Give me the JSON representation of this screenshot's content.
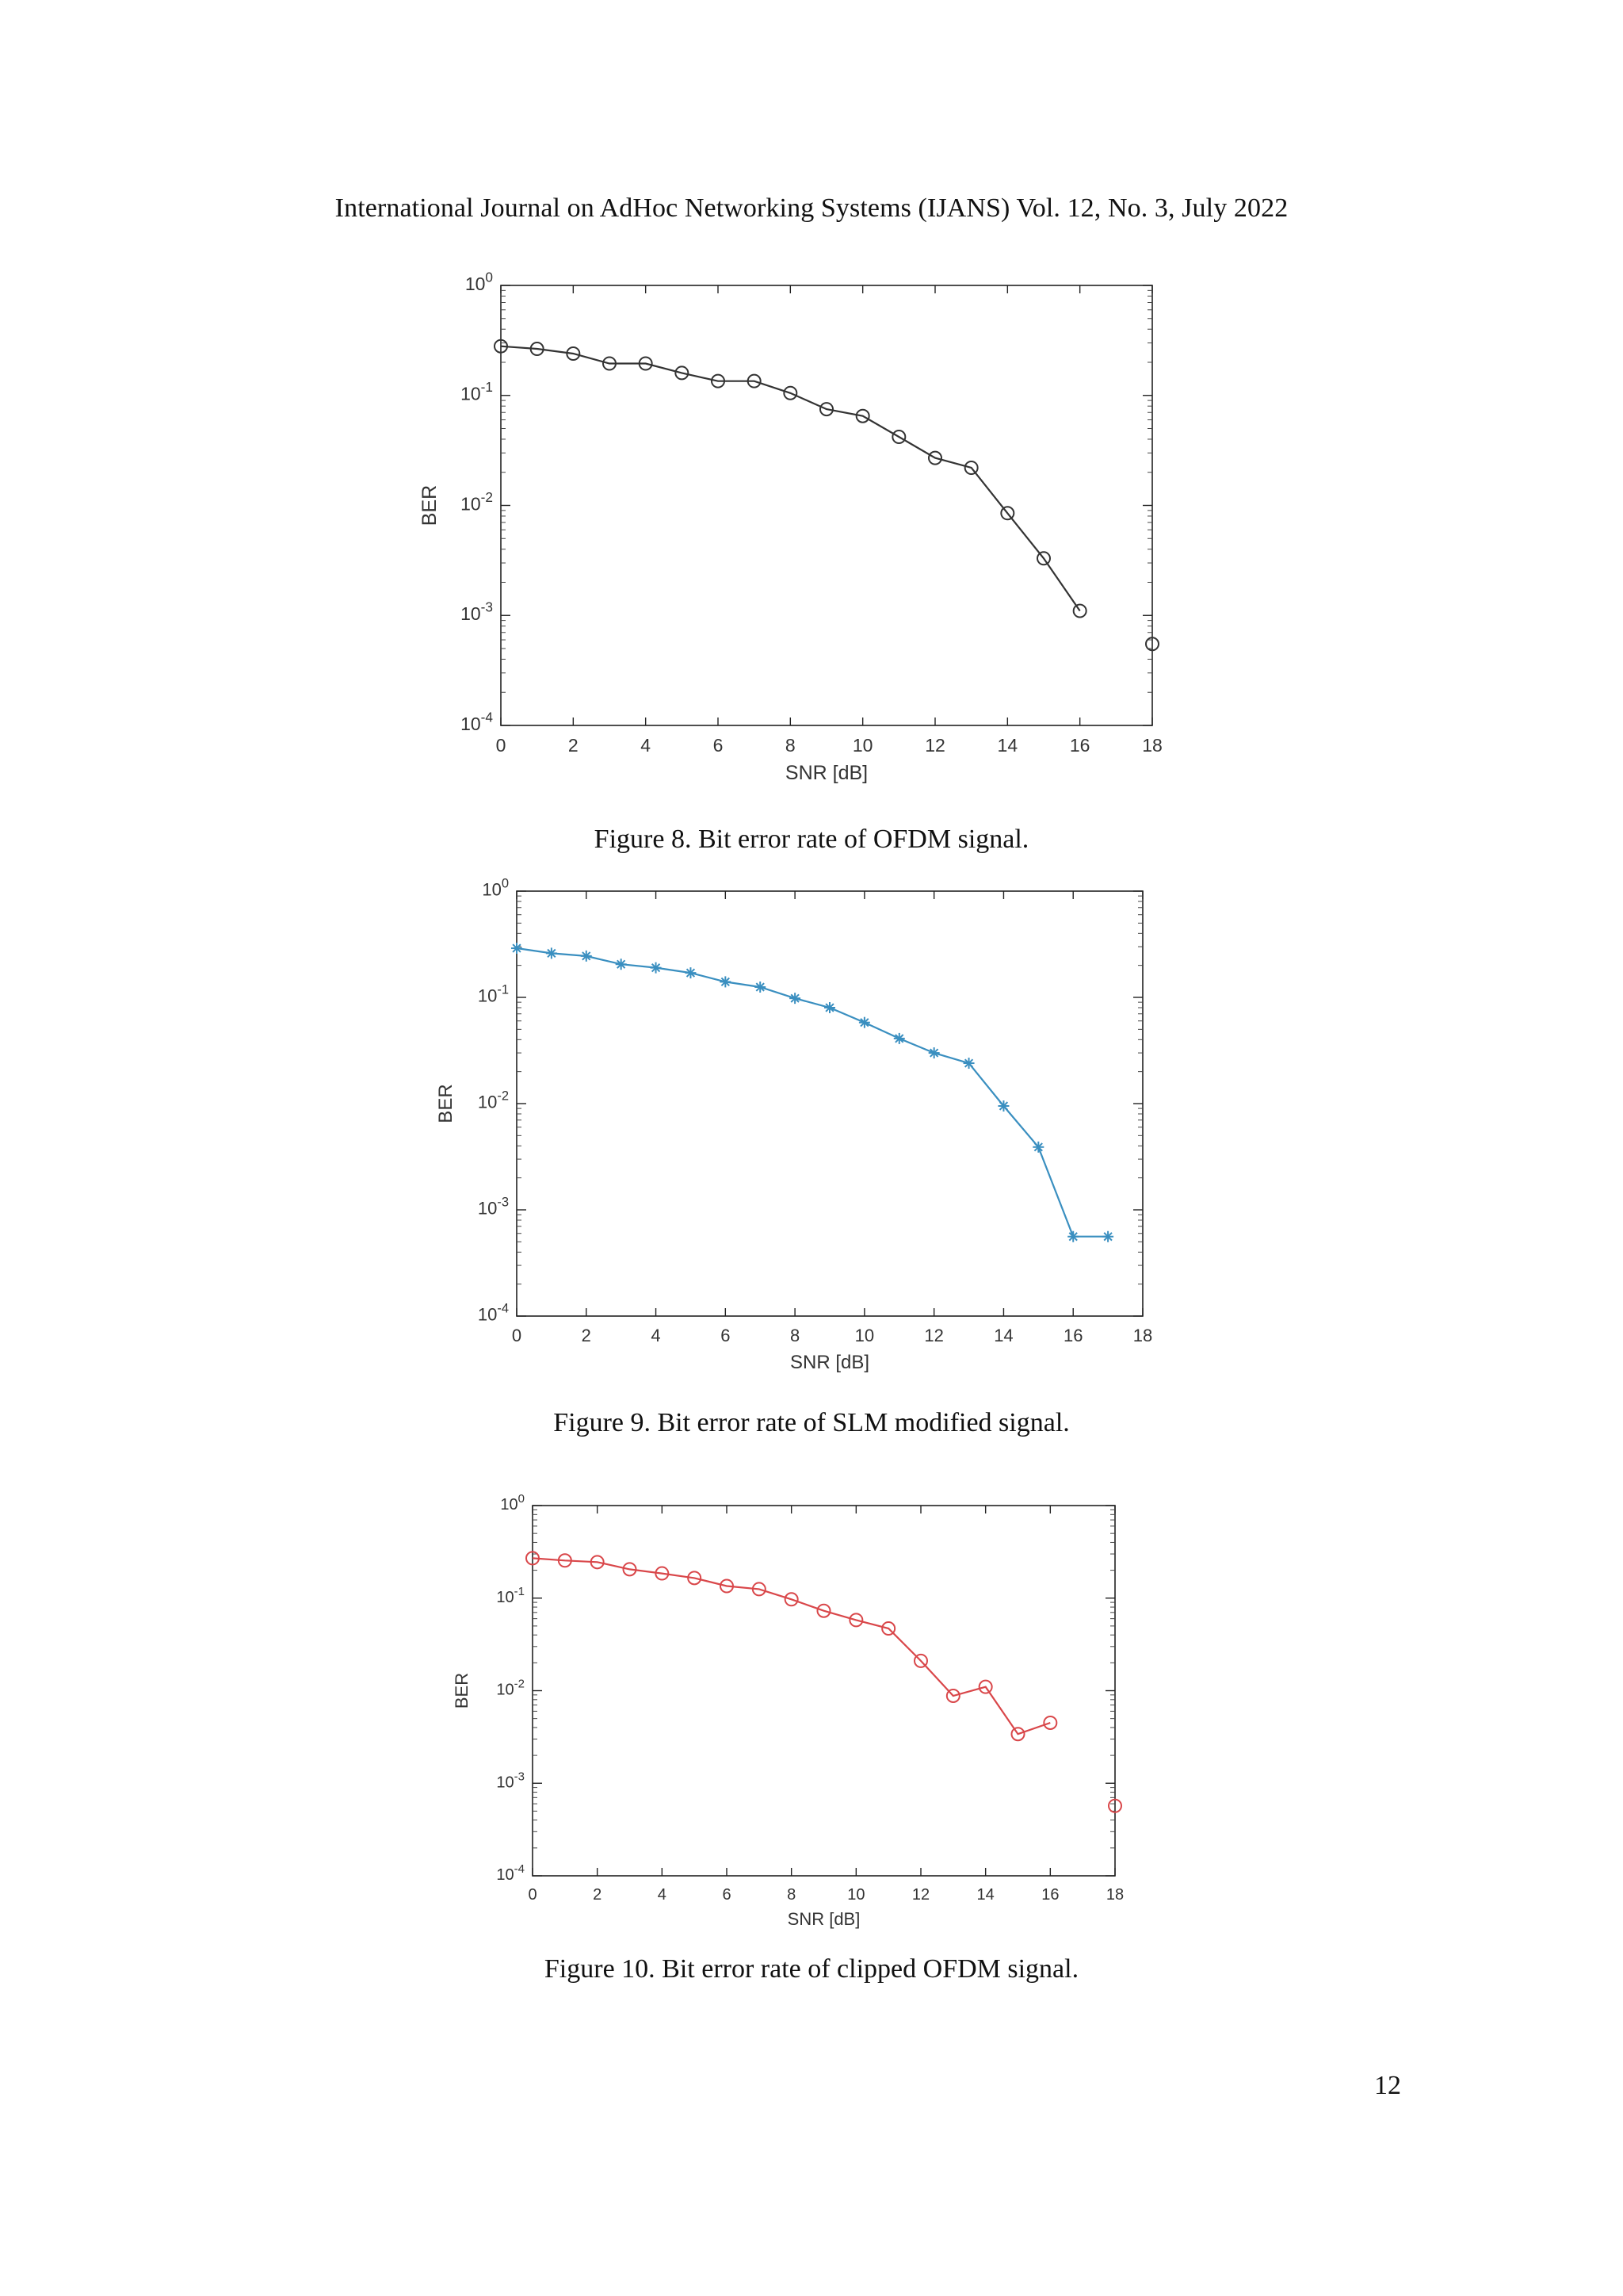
{
  "header": "International Journal on AdHoc Networking Systems (IJANS) Vol. 12, No. 3, July 2022",
  "page_number": "12",
  "figures": [
    {
      "caption": "Figure 8. Bit error rate of OFDM signal.",
      "color": "#333333",
      "marker": "circle",
      "chart_data": {
        "type": "line",
        "scale_y": "log",
        "xlabel": "SNR [dB]",
        "ylabel": "BER",
        "xlim": [
          0,
          18
        ],
        "ylim": [
          0.0001,
          1
        ],
        "x_ticks": [
          "0",
          "2",
          "4",
          "6",
          "8",
          "10",
          "12",
          "14",
          "16",
          "18"
        ],
        "y_ticks": [
          {
            "base": "10",
            "exp": "0"
          },
          {
            "base": "10",
            "exp": "-1"
          },
          {
            "base": "10",
            "exp": "-2"
          },
          {
            "base": "10",
            "exp": "-3"
          },
          {
            "base": "10",
            "exp": "-4"
          }
        ],
        "x": [
          0,
          1,
          2,
          3,
          4,
          5,
          6,
          7,
          8,
          9,
          10,
          11,
          12,
          13,
          14,
          15,
          16
        ],
        "y": [
          0.28,
          0.265,
          0.24,
          0.195,
          0.195,
          0.16,
          0.135,
          0.135,
          0.105,
          0.075,
          0.065,
          0.042,
          0.027,
          0.022,
          0.0085,
          0.0033,
          0.0011
        ],
        "extra_points": [
          {
            "x": 18,
            "y": 0.00055
          }
        ]
      }
    },
    {
      "caption": "Figure 9. Bit error rate of SLM modified signal.",
      "color": "#3a8fc0",
      "marker": "star",
      "chart_data": {
        "type": "line",
        "scale_y": "log",
        "xlabel": "SNR [dB]",
        "ylabel": "BER",
        "xlim": [
          0,
          18
        ],
        "ylim": [
          0.0001,
          1
        ],
        "x_ticks": [
          "0",
          "2",
          "4",
          "6",
          "8",
          "10",
          "12",
          "14",
          "16",
          "18"
        ],
        "y_ticks": [
          {
            "base": "10",
            "exp": "0"
          },
          {
            "base": "10",
            "exp": "-1"
          },
          {
            "base": "10",
            "exp": "-2"
          },
          {
            "base": "10",
            "exp": "-3"
          },
          {
            "base": "10",
            "exp": "-4"
          }
        ],
        "x": [
          0,
          1,
          2,
          3,
          4,
          5,
          6,
          7,
          8,
          9,
          10,
          11,
          12,
          13,
          14,
          15,
          16,
          17
        ],
        "y": [
          0.29,
          0.26,
          0.245,
          0.205,
          0.19,
          0.17,
          0.14,
          0.125,
          0.098,
          0.08,
          0.058,
          0.041,
          0.03,
          0.024,
          0.0095,
          0.0039,
          0.00056,
          0.00056
        ],
        "extra_points": []
      }
    },
    {
      "caption": "Figure 10. Bit error rate of clipped OFDM signal.",
      "color": "#d9474a",
      "marker": "circle",
      "chart_data": {
        "type": "line",
        "scale_y": "log",
        "xlabel": "SNR [dB]",
        "ylabel": "BER",
        "xlim": [
          0,
          18
        ],
        "ylim": [
          0.0001,
          1
        ],
        "x_ticks": [
          "0",
          "2",
          "4",
          "6",
          "8",
          "10",
          "12",
          "14",
          "16",
          "18"
        ],
        "y_ticks": [
          {
            "base": "10",
            "exp": "0"
          },
          {
            "base": "10",
            "exp": "-1"
          },
          {
            "base": "10",
            "exp": "-2"
          },
          {
            "base": "10",
            "exp": "-3"
          },
          {
            "base": "10",
            "exp": "-4"
          }
        ],
        "x": [
          0,
          1,
          2,
          3,
          4,
          5,
          6,
          7,
          8,
          9,
          10,
          11,
          12,
          13,
          14,
          15,
          16
        ],
        "y": [
          0.27,
          0.255,
          0.245,
          0.205,
          0.185,
          0.165,
          0.135,
          0.125,
          0.097,
          0.073,
          0.058,
          0.047,
          0.021,
          0.0088,
          0.011,
          0.0034,
          0.0045
        ],
        "extra_points": [
          {
            "x": 18,
            "y": 0.00057
          }
        ]
      }
    }
  ]
}
